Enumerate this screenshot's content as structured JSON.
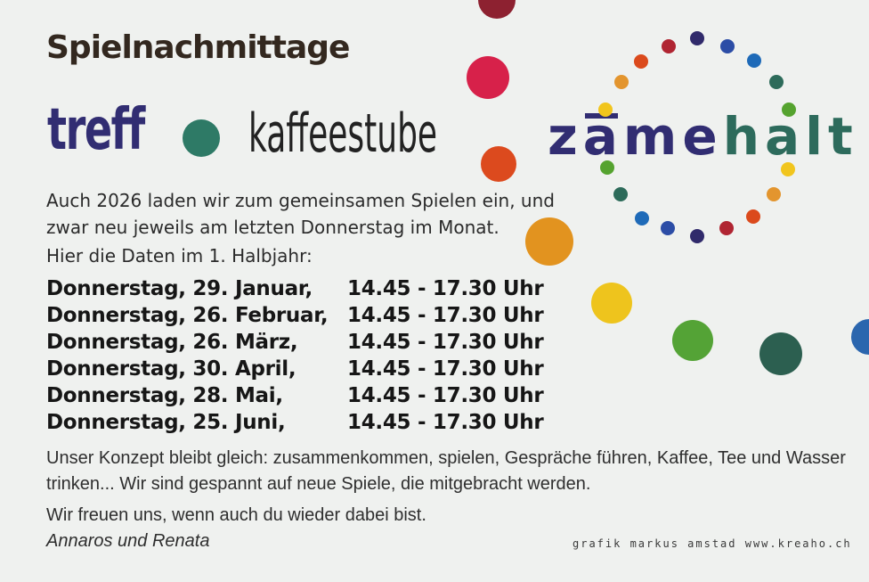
{
  "header": {
    "title": "Spielnachmittage",
    "treff": {
      "text": "treff",
      "dot_color": "#2e7a66",
      "suffix": "kaffeestube"
    },
    "zamehalt": {
      "word": "zämehalt",
      "z": "z",
      "a1": "a",
      "me": "me",
      "halt": "halt",
      "zame_color": "#312d72",
      "halt_color": "#2d6b5c"
    }
  },
  "intro": {
    "lines": [
      "Auch 2026 laden wir zum gemeinsamen Spielen ein, und",
      "zwar neu jeweils am letzten Donnerstag im Monat."
    ]
  },
  "schedule": {
    "heading": "Hier die Daten im 1. Halbjahr:",
    "rows": [
      {
        "day": "Donnerstag, 29. Januar,",
        "time": "14.45 - 17.30 Uhr"
      },
      {
        "day": "Donnerstag, 26. Februar,",
        "time": "14.45 - 17.30 Uhr"
      },
      {
        "day": "Donnerstag, 26. März,",
        "time": "14.45 - 17.30 Uhr"
      },
      {
        "day": "Donnerstag, 30. April,",
        "time": "14.45 - 17.30 Uhr"
      },
      {
        "day": "Donnerstag, 28. Mai,",
        "time": "14.45 - 17.30 Uhr"
      },
      {
        "day": "Donnerstag, 25. Juni,",
        "time": "14.45 - 17.30 Uhr"
      }
    ]
  },
  "outro": {
    "concept_lines": [
      "Unser Konzept bleibt gleich: zusammenkommen, spielen, Gespräche führen, Kaffee, Tee und Wasser",
      "trinken... Wir sind gespannt auf neue Spiele, die mitgebracht werden."
    ],
    "closing": "Wir freuen uns, wenn auch du wieder dabei bist.",
    "signature": "Annaros und Renata"
  },
  "footer": {
    "credit": "grafik markus amstad www.kreaho.ch"
  },
  "decor": {
    "ring_colors": [
      "#302a6b",
      "#2c4da6",
      "#1e6ab8",
      "#2d6b5a",
      "#55a32f",
      "#f1c51d",
      "#e3952e",
      "#db4a1c",
      "#b02532",
      "#302a6b",
      "#2c4da6",
      "#1e6ab8",
      "#2d6b5a",
      "#55a32f",
      "#f1c51d",
      "#e3952e",
      "#db4a1c",
      "#b02532"
    ],
    "big_dots": [
      {
        "name": "maroon",
        "color": "#8d2130"
      },
      {
        "name": "crimson",
        "color": "#d7214a"
      },
      {
        "name": "orange-red",
        "color": "#dc4a1e"
      },
      {
        "name": "orange",
        "color": "#e2931f"
      },
      {
        "name": "yellow",
        "color": "#eec41d"
      },
      {
        "name": "green",
        "color": "#54a336"
      },
      {
        "name": "dark-teal",
        "color": "#2c5f50"
      },
      {
        "name": "blue",
        "color": "#2b66ae"
      }
    ]
  }
}
